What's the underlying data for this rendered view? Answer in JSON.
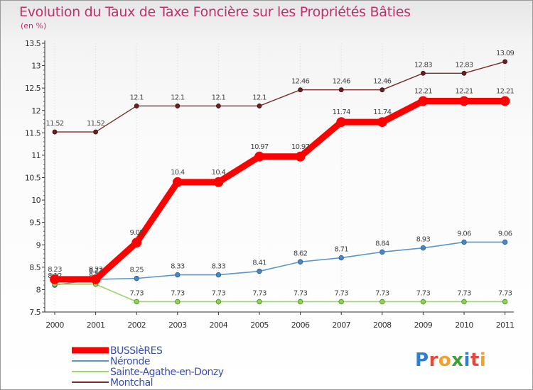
{
  "chart_data": {
    "type": "line",
    "title": "Evolution du Taux de Taxe Foncière sur les Propriétés Bâties",
    "subtitle": "(en %)",
    "xlabel": "",
    "ylabel": "",
    "x": [
      "2000",
      "2001",
      "2002",
      "2003",
      "2004",
      "2005",
      "2006",
      "2007",
      "2008",
      "2009",
      "2010",
      "2011"
    ],
    "ylim": [
      7.5,
      13.5
    ],
    "yticks": [
      7.5,
      8,
      8.5,
      9,
      9.5,
      10,
      10.5,
      11,
      11.5,
      12,
      12.5,
      13,
      13.5
    ],
    "ytick_labels": [
      "7.5",
      "8",
      "8.5",
      "9",
      "9.5",
      "10",
      "10.5",
      "11",
      "11.5",
      "12",
      "12.5",
      "13",
      "13.5"
    ],
    "legend_position": "bottom-left",
    "series": [
      {
        "name": "Montchal",
        "color": "#7b2c2c",
        "values": [
          11.52,
          11.52,
          12.1,
          12.1,
          12.1,
          12.1,
          12.46,
          12.46,
          12.46,
          12.83,
          12.83,
          13.09
        ],
        "labels": [
          "11.52",
          "11.52",
          "12.1",
          "12.1",
          "12.1",
          "12.1",
          "12.46",
          "12.46",
          "12.46",
          "12.83",
          "12.83",
          "13.09"
        ]
      },
      {
        "name": "Néronde",
        "color": "#5a96c8",
        "values": [
          8.1,
          8.23,
          8.25,
          8.33,
          8.33,
          8.41,
          8.62,
          8.71,
          8.84,
          8.93,
          9.06,
          9.06
        ],
        "labels": [
          "8.1",
          "8.23",
          "8.25",
          "8.33",
          "8.33",
          "8.41",
          "8.62",
          "8.71",
          "8.84",
          "8.93",
          "9.06",
          "9.06"
        ]
      },
      {
        "name": "Sainte-Agathe-en-Donzy",
        "color": "#9ed46a",
        "values": [
          8.12,
          8.12,
          7.73,
          7.73,
          7.73,
          7.73,
          7.73,
          7.73,
          7.73,
          7.73,
          7.73,
          7.73
        ],
        "labels": [
          "8.12",
          "8.12",
          "7.73",
          "7.73",
          "7.73",
          "7.73",
          "7.73",
          "7.73",
          "7.73",
          "7.73",
          "7.73",
          "7.73"
        ]
      },
      {
        "name": "BUSSIèRES",
        "color": "#ff0000",
        "values": [
          8.23,
          8.23,
          9.05,
          10.4,
          10.4,
          10.97,
          10.97,
          11.74,
          11.74,
          12.21,
          12.21,
          12.21
        ],
        "labels": [
          "8.23",
          "8.23",
          "9.05",
          "10.4",
          "10.4",
          "10.97",
          "10.97",
          "11.74",
          "11.74",
          "12.21",
          "12.21",
          "12.21"
        ]
      }
    ],
    "legend": [
      "BUSSIèRES",
      "Néronde",
      "Sainte-Agathe-en-Donzy",
      "Montchal"
    ]
  },
  "logo": {
    "letters": [
      "P",
      "r",
      "o",
      "x",
      "i",
      "t",
      "i"
    ]
  }
}
